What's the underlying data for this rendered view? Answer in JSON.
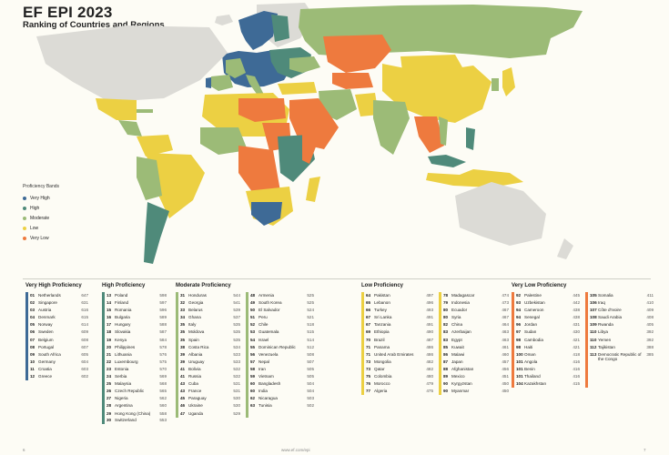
{
  "header": {
    "title": "EF EPI 2023",
    "subtitle": "Ranking of Countries and Regions"
  },
  "colors": {
    "very_high": "#3e6a96",
    "high": "#4f8a7a",
    "moderate": "#9cbb77",
    "low": "#ecd043",
    "very_low": "#ee7a3e",
    "no_data": "#dcdbd6",
    "ocean": "#fdfcf5"
  },
  "legend": {
    "title": "Proficiency Bands",
    "items": [
      {
        "label": "Very High",
        "color": "#3e6a96"
      },
      {
        "label": "High",
        "color": "#4f8a7a"
      },
      {
        "label": "Moderate",
        "color": "#9cbb77"
      },
      {
        "label": "Low",
        "color": "#ecd043"
      },
      {
        "label": "Very Low",
        "color": "#ee7a3e"
      }
    ]
  },
  "bands": [
    {
      "title": "Very High Proficiency",
      "color": "#3e6a96",
      "columns": [
        [
          {
            "rank": "01",
            "name": "Netherlands",
            "score": "647"
          },
          {
            "rank": "02",
            "name": "Singapore",
            "score": "631"
          },
          {
            "rank": "03",
            "name": "Austria",
            "score": "616"
          },
          {
            "rank": "04",
            "name": "Denmark",
            "score": "615"
          },
          {
            "rank": "05",
            "name": "Norway",
            "score": "614"
          },
          {
            "rank": "06",
            "name": "Sweden",
            "score": "609"
          },
          {
            "rank": "07",
            "name": "Belgium",
            "score": "608"
          },
          {
            "rank": "08",
            "name": "Portugal",
            "score": "607"
          },
          {
            "rank": "09",
            "name": "South Africa",
            "score": "605"
          },
          {
            "rank": "10",
            "name": "Germany",
            "score": "604"
          },
          {
            "rank": "11",
            "name": "Croatia",
            "score": "603"
          },
          {
            "rank": "12",
            "name": "Greece",
            "score": "602"
          }
        ]
      ]
    },
    {
      "title": "High Proficiency",
      "color": "#4f8a7a",
      "columns": [
        [
          {
            "rank": "13",
            "name": "Poland",
            "score": "598"
          },
          {
            "rank": "14",
            "name": "Finland",
            "score": "597"
          },
          {
            "rank": "15",
            "name": "Romania",
            "score": "596"
          },
          {
            "rank": "16",
            "name": "Bulgaria",
            "score": "589"
          },
          {
            "rank": "17",
            "name": "Hungary",
            "score": "588"
          },
          {
            "rank": "18",
            "name": "Slovakia",
            "score": "587"
          },
          {
            "rank": "19",
            "name": "Kenya",
            "score": "584"
          },
          {
            "rank": "20",
            "name": "Philippines",
            "score": "578"
          },
          {
            "rank": "21",
            "name": "Lithuania",
            "score": "576"
          },
          {
            "rank": "22",
            "name": "Luxembourg",
            "score": "575"
          },
          {
            "rank": "23",
            "name": "Estonia",
            "score": "570"
          },
          {
            "rank": "24",
            "name": "Serbia",
            "score": "569"
          },
          {
            "rank": "25",
            "name": "Malaysia",
            "score": "568"
          },
          {
            "rank": "26",
            "name": "Czech Republic",
            "score": "565"
          },
          {
            "rank": "27",
            "name": "Nigeria",
            "score": "562"
          },
          {
            "rank": "28",
            "name": "Argentina",
            "score": "560"
          },
          {
            "rank": "29",
            "name": "Hong Kong (China)",
            "score": "558",
            "multi": true
          },
          {
            "rank": "30",
            "name": "Switzerland",
            "score": "553"
          }
        ]
      ]
    },
    {
      "title": "Moderate Proficiency",
      "color": "#9cbb77",
      "columns": [
        [
          {
            "rank": "31",
            "name": "Honduras",
            "score": "544"
          },
          {
            "rank": "32",
            "name": "Georgia",
            "score": "541"
          },
          {
            "rank": "33",
            "name": "Belarus",
            "score": "539"
          },
          {
            "rank": "34",
            "name": "Ghana",
            "score": "537"
          },
          {
            "rank": "35",
            "name": "Italy",
            "score": "535"
          },
          {
            "rank": "35",
            "name": "Moldova",
            "score": "535"
          },
          {
            "rank": "35",
            "name": "Spain",
            "score": "535"
          },
          {
            "rank": "38",
            "name": "Costa Rica",
            "score": "534"
          },
          {
            "rank": "39",
            "name": "Albania",
            "score": "533"
          },
          {
            "rank": "39",
            "name": "Uruguay",
            "score": "533"
          },
          {
            "rank": "41",
            "name": "Bolivia",
            "score": "532"
          },
          {
            "rank": "41",
            "name": "Russia",
            "score": "532"
          },
          {
            "rank": "43",
            "name": "Cuba",
            "score": "531"
          },
          {
            "rank": "43",
            "name": "France",
            "score": "531"
          },
          {
            "rank": "45",
            "name": "Paraguay",
            "score": "530"
          },
          {
            "rank": "46",
            "name": "Ukraine",
            "score": "530"
          },
          {
            "rank": "47",
            "name": "Uganda",
            "score": "529"
          }
        ],
        [
          {
            "rank": "48",
            "name": "Armenia",
            "score": "525"
          },
          {
            "rank": "49",
            "name": "South Korea",
            "score": "525"
          },
          {
            "rank": "50",
            "name": "El Salvador",
            "score": "524"
          },
          {
            "rank": "51",
            "name": "Peru",
            "score": "521"
          },
          {
            "rank": "52",
            "name": "Chile",
            "score": "518"
          },
          {
            "rank": "53",
            "name": "Guatemala",
            "score": "515"
          },
          {
            "rank": "54",
            "name": "Israel",
            "score": "514"
          },
          {
            "rank": "55",
            "name": "Dominican Republic",
            "score": "512"
          },
          {
            "rank": "56",
            "name": "Venezuela",
            "score": "508"
          },
          {
            "rank": "57",
            "name": "Nepal",
            "score": "507"
          },
          {
            "rank": "58",
            "name": "Iran",
            "score": "505"
          },
          {
            "rank": "59",
            "name": "Vietnam",
            "score": "505"
          },
          {
            "rank": "60",
            "name": "Bangladesh",
            "score": "504"
          },
          {
            "rank": "60",
            "name": "India",
            "score": "504"
          },
          {
            "rank": "62",
            "name": "Nicaragua",
            "score": "503"
          },
          {
            "rank": "63",
            "name": "Tunisia",
            "score": "502"
          }
        ]
      ]
    },
    {
      "title": "Low Proficiency",
      "color": "#ecd043",
      "columns": [
        [
          {
            "rank": "64",
            "name": "Pakistan",
            "score": "497"
          },
          {
            "rank": "65",
            "name": "Lebanon",
            "score": "496"
          },
          {
            "rank": "66",
            "name": "Turkey",
            "score": "493"
          },
          {
            "rank": "67",
            "name": "Sri Lanka",
            "score": "491"
          },
          {
            "rank": "67",
            "name": "Tanzania",
            "score": "491"
          },
          {
            "rank": "69",
            "name": "Ethiopia",
            "score": "490"
          },
          {
            "rank": "70",
            "name": "Brazil",
            "score": "487"
          },
          {
            "rank": "71",
            "name": "Panama",
            "score": "486"
          },
          {
            "rank": "71",
            "name": "United Arab Emirates",
            "score": "486"
          },
          {
            "rank": "73",
            "name": "Mongolia",
            "score": "482"
          },
          {
            "rank": "73",
            "name": "Qatar",
            "score": "482"
          },
          {
            "rank": "75",
            "name": "Colombia",
            "score": "480"
          },
          {
            "rank": "76",
            "name": "Morocco",
            "score": "479"
          },
          {
            "rank": "77",
            "name": "Algeria",
            "score": "475"
          }
        ],
        [
          {
            "rank": "78",
            "name": "Madagascar",
            "score": "474"
          },
          {
            "rank": "79",
            "name": "Indonesia",
            "score": "473"
          },
          {
            "rank": "80",
            "name": "Ecuador",
            "score": "467"
          },
          {
            "rank": "80",
            "name": "Syria",
            "score": "467"
          },
          {
            "rank": "82",
            "name": "China",
            "score": "464"
          },
          {
            "rank": "83",
            "name": "Azerbaijan",
            "score": "463"
          },
          {
            "rank": "83",
            "name": "Egypt",
            "score": "463"
          },
          {
            "rank": "85",
            "name": "Kuwait",
            "score": "461"
          },
          {
            "rank": "86",
            "name": "Malawi",
            "score": "460"
          },
          {
            "rank": "87",
            "name": "Japan",
            "score": "457"
          },
          {
            "rank": "88",
            "name": "Afghanistan",
            "score": "456"
          },
          {
            "rank": "89",
            "name": "Mexico",
            "score": "451"
          },
          {
            "rank": "90",
            "name": "Kyrgyzstan",
            "score": "450"
          },
          {
            "rank": "90",
            "name": "Myanmar",
            "score": "450"
          }
        ]
      ]
    },
    {
      "title": "Very Low Proficiency",
      "color": "#ee7a3e",
      "columns": [
        [
          {
            "rank": "92",
            "name": "Palestine",
            "score": "445"
          },
          {
            "rank": "93",
            "name": "Uzbekistan",
            "score": "442"
          },
          {
            "rank": "94",
            "name": "Cameroon",
            "score": "438"
          },
          {
            "rank": "94",
            "name": "Senegal",
            "score": "438"
          },
          {
            "rank": "96",
            "name": "Jordan",
            "score": "431"
          },
          {
            "rank": "97",
            "name": "Sudan",
            "score": "430"
          },
          {
            "rank": "98",
            "name": "Cambodia",
            "score": "421"
          },
          {
            "rank": "98",
            "name": "Haiti",
            "score": "421"
          },
          {
            "rank": "100",
            "name": "Oman",
            "score": "418"
          },
          {
            "rank": "101",
            "name": "Angola",
            "score": "416"
          },
          {
            "rank": "101",
            "name": "Benin",
            "score": "416"
          },
          {
            "rank": "101",
            "name": "Thailand",
            "score": "416"
          },
          {
            "rank": "104",
            "name": "Kazakhstan",
            "score": "415"
          }
        ],
        [
          {
            "rank": "105",
            "name": "Somalia",
            "score": "411"
          },
          {
            "rank": "106",
            "name": "Iraq",
            "score": "410"
          },
          {
            "rank": "107",
            "name": "Côte d'Ivoire",
            "score": "409"
          },
          {
            "rank": "108",
            "name": "Saudi Arabia",
            "score": "408"
          },
          {
            "rank": "109",
            "name": "Rwanda",
            "score": "405"
          },
          {
            "rank": "110",
            "name": "Libya",
            "score": "392"
          },
          {
            "rank": "110",
            "name": "Yemen",
            "score": "392"
          },
          {
            "rank": "112",
            "name": "Tajikistan",
            "score": "388"
          },
          {
            "rank": "113",
            "name": "Democratic Republic of the Congo",
            "score": "385",
            "multi": true
          }
        ]
      ]
    }
  ],
  "footer": {
    "page_left": "6",
    "url": "www.ef.com/epi",
    "page_right": "7"
  }
}
